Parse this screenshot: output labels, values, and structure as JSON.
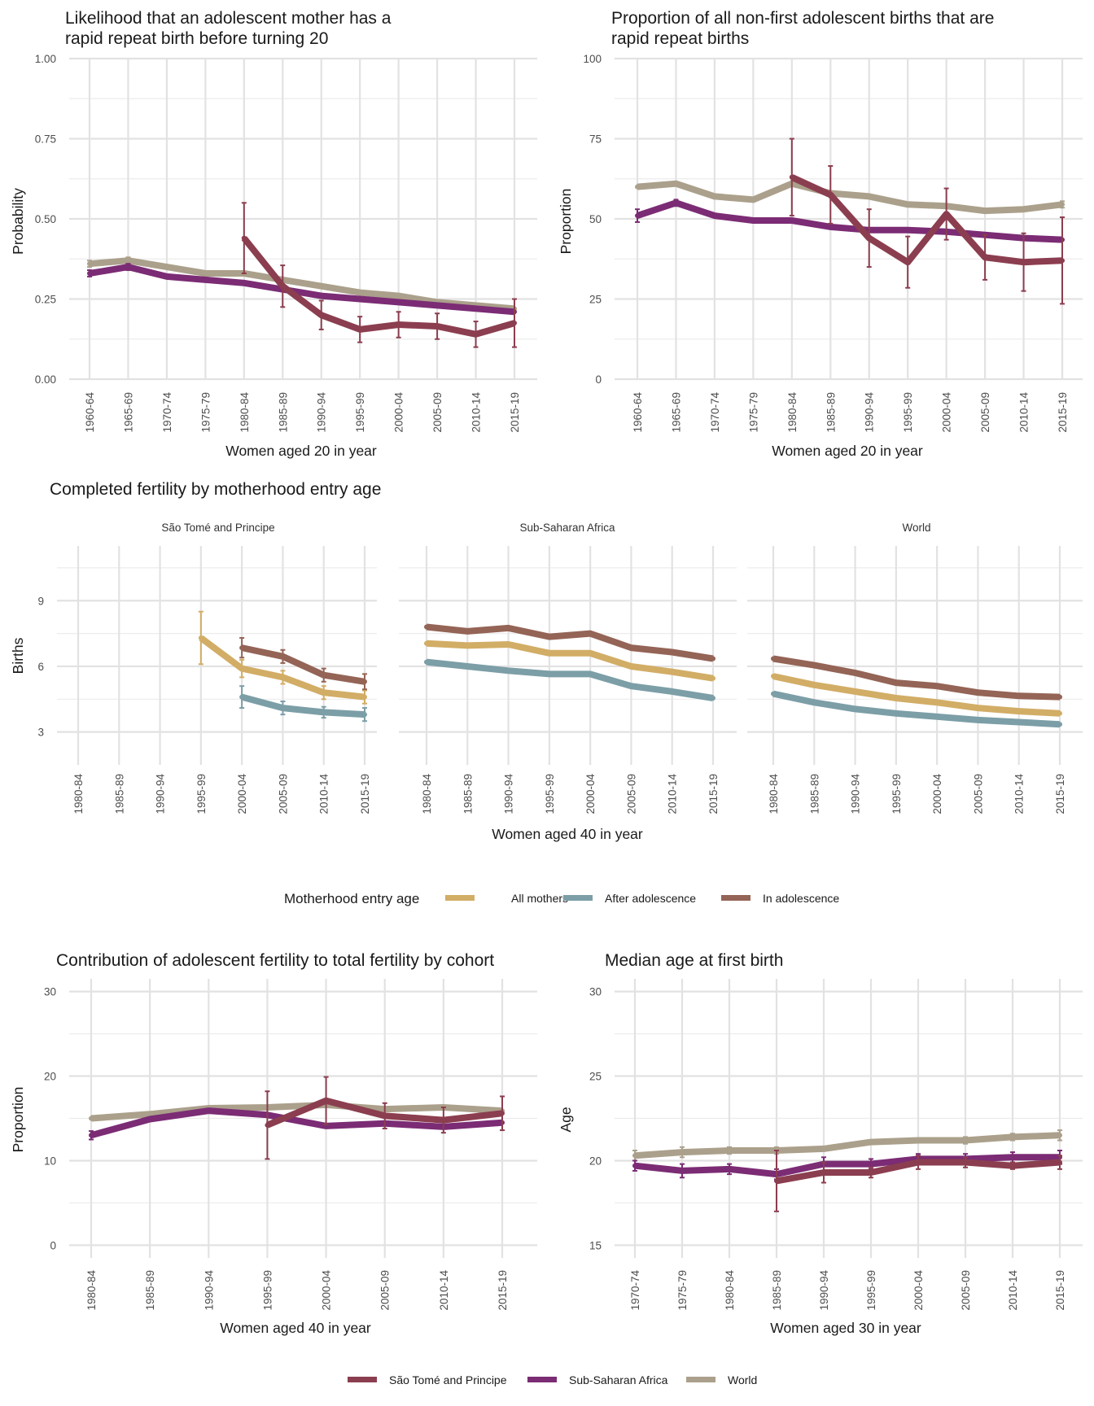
{
  "colors": {
    "stp": "#8b3e4f",
    "ssa": "#7b2c74",
    "world": "#aba08b",
    "all_mothers": "#d2ad66",
    "after_adolescence": "#7c9ea7",
    "in_adolescence": "#946456"
  },
  "legend_mother": {
    "title": "Motherhood entry age",
    "items": [
      "All mothers",
      "After adolescence",
      "In adolescence"
    ]
  },
  "legend_region": {
    "items": [
      "São Tomé and Principe",
      "Sub-Saharan Africa",
      "World"
    ]
  },
  "chart_data": [
    {
      "type": "line",
      "title": "Likelihood that an adolescent mother has a rapid repeat birth before turning 20",
      "title_lines": [
        "Likelihood that an adolescent mother has a",
        "rapid repeat birth before turning 20"
      ],
      "xlabel": "Women aged 20 in year",
      "ylabel": "Probability",
      "categories": [
        "1960-64",
        "1965-69",
        "1970-74",
        "1975-79",
        "1980-84",
        "1985-89",
        "1990-94",
        "1995-99",
        "2000-04",
        "2005-09",
        "2010-14",
        "2015-19"
      ],
      "ylim": [
        0,
        1
      ],
      "yticks": [
        "0.00",
        "0.25",
        "0.50",
        "0.75",
        "1.00"
      ],
      "series": [
        {
          "name": "World",
          "color": "#aba08b",
          "values": [
            0.36,
            0.37,
            0.35,
            0.33,
            0.33,
            0.31,
            0.29,
            0.27,
            0.26,
            0.24,
            0.23,
            0.22
          ],
          "err": [
            0.01,
            0.01,
            null,
            null,
            null,
            null,
            null,
            null,
            null,
            null,
            null,
            null
          ]
        },
        {
          "name": "Sub-Saharan Africa",
          "color": "#7b2c74",
          "values": [
            0.33,
            0.35,
            0.32,
            0.31,
            0.3,
            0.28,
            0.26,
            0.25,
            0.24,
            0.23,
            0.22,
            0.21
          ],
          "err": [
            0.01,
            0.01,
            null,
            null,
            null,
            null,
            null,
            null,
            null,
            null,
            null,
            null
          ]
        },
        {
          "name": "São Tomé and Principe",
          "color": "#8b3e4f",
          "values": [
            null,
            null,
            null,
            null,
            0.44,
            0.29,
            0.2,
            0.155,
            0.17,
            0.165,
            0.14,
            0.175
          ],
          "err": [
            null,
            null,
            null,
            null,
            0.11,
            0.065,
            0.045,
            0.04,
            0.04,
            0.04,
            0.04,
            0.075
          ]
        }
      ]
    },
    {
      "type": "line",
      "title": "Proportion of all non-first adolescent births that are rapid repeat births",
      "title_lines": [
        "Proportion of all non-first adolescent births that are",
        "rapid repeat births"
      ],
      "xlabel": "Women aged 20 in year",
      "ylabel": "Proportion",
      "categories": [
        "1960-64",
        "1965-69",
        "1970-74",
        "1975-79",
        "1980-84",
        "1985-89",
        "1990-94",
        "1995-99",
        "2000-04",
        "2005-09",
        "2010-14",
        "2015-19"
      ],
      "ylim": [
        0,
        100
      ],
      "yticks": [
        "0",
        "25",
        "50",
        "75",
        "100"
      ],
      "series": [
        {
          "name": "World",
          "color": "#aba08b",
          "values": [
            60,
            61,
            57,
            56,
            61,
            58,
            57,
            54.5,
            54,
            52.5,
            53,
            54.5
          ],
          "err": [
            null,
            null,
            null,
            null,
            null,
            null,
            null,
            null,
            null,
            null,
            null,
            1
          ]
        },
        {
          "name": "Sub-Saharan Africa",
          "color": "#7b2c74",
          "values": [
            51,
            55,
            51,
            49.5,
            49.5,
            47.5,
            46.5,
            46.5,
            46,
            45,
            44,
            43.5
          ],
          "err": [
            2,
            1,
            null,
            null,
            null,
            null,
            null,
            null,
            null,
            null,
            null,
            null
          ]
        },
        {
          "name": "São Tomé and Principe",
          "color": "#8b3e4f",
          "values": [
            null,
            null,
            null,
            null,
            63,
            57.5,
            44,
            36.5,
            51.5,
            38,
            36.5,
            37
          ],
          "err": [
            null,
            null,
            null,
            null,
            12,
            9,
            9,
            8,
            8,
            7,
            9,
            13.5
          ]
        }
      ]
    },
    {
      "type": "line",
      "title": "Completed fertility by motherhood entry age",
      "xlabel": "Women aged 40 in year",
      "ylabel": "Births",
      "categories": [
        "1980-84",
        "1985-89",
        "1990-94",
        "1995-99",
        "2000-04",
        "2005-09",
        "2010-14",
        "2015-19"
      ],
      "ylim": [
        1.5,
        11.5
      ],
      "yticks": [
        "3",
        "6",
        "9"
      ],
      "panels": [
        {
          "name": "São Tomé and Principe",
          "series": [
            {
              "name": "All mothers",
              "color": "#d2ad66",
              "values": [
                null,
                null,
                null,
                7.3,
                5.9,
                5.5,
                4.8,
                4.6
              ],
              "err": [
                null,
                null,
                null,
                1.2,
                0.4,
                0.3,
                0.3,
                0.3
              ]
            },
            {
              "name": "After adolescence",
              "color": "#7c9ea7",
              "values": [
                null,
                null,
                null,
                null,
                4.6,
                4.1,
                3.9,
                3.8
              ],
              "err": [
                null,
                null,
                null,
                null,
                0.5,
                0.3,
                0.25,
                0.3
              ]
            },
            {
              "name": "In adolescence",
              "color": "#946456",
              "values": [
                null,
                null,
                null,
                null,
                6.85,
                6.45,
                5.6,
                5.3
              ],
              "err": [
                null,
                null,
                null,
                null,
                0.45,
                0.3,
                0.3,
                0.35
              ]
            }
          ]
        },
        {
          "name": "Sub-Saharan Africa",
          "series": [
            {
              "name": "All mothers",
              "color": "#d2ad66",
              "values": [
                7.05,
                6.95,
                7.0,
                6.6,
                6.6,
                6.0,
                5.75,
                5.45
              ],
              "err": [
                null,
                null,
                null,
                null,
                null,
                null,
                null,
                null
              ]
            },
            {
              "name": "After adolescence",
              "color": "#7c9ea7",
              "values": [
                6.2,
                6.0,
                5.8,
                5.65,
                5.65,
                5.1,
                4.85,
                4.55
              ],
              "err": [
                null,
                null,
                null,
                null,
                null,
                null,
                null,
                null
              ]
            },
            {
              "name": "In adolescence",
              "color": "#946456",
              "values": [
                7.8,
                7.6,
                7.75,
                7.35,
                7.5,
                6.85,
                6.65,
                6.35
              ],
              "err": [
                null,
                null,
                null,
                null,
                null,
                null,
                null,
                null
              ]
            }
          ]
        },
        {
          "name": "World",
          "series": [
            {
              "name": "All mothers",
              "color": "#d2ad66",
              "values": [
                5.55,
                5.15,
                4.85,
                4.55,
                4.35,
                4.1,
                3.95,
                3.85
              ],
              "err": [
                null,
                null,
                null,
                null,
                null,
                null,
                null,
                null
              ]
            },
            {
              "name": "After adolescence",
              "color": "#7c9ea7",
              "values": [
                4.75,
                4.35,
                4.05,
                3.85,
                3.7,
                3.55,
                3.45,
                3.35
              ],
              "err": [
                null,
                null,
                null,
                null,
                null,
                null,
                null,
                null
              ]
            },
            {
              "name": "In adolescence",
              "color": "#946456",
              "values": [
                6.35,
                6.05,
                5.7,
                5.25,
                5.1,
                4.8,
                4.65,
                4.6
              ],
              "err": [
                null,
                null,
                null,
                null,
                null,
                null,
                null,
                null
              ]
            }
          ]
        }
      ]
    },
    {
      "type": "line",
      "title": "Contribution of adolescent fertility to total fertility by cohort",
      "xlabel": "Women aged 40 in year",
      "ylabel": "Proportion",
      "categories": [
        "1980-84",
        "1985-89",
        "1990-94",
        "1995-99",
        "2000-04",
        "2005-09",
        "2010-14",
        "2015-19"
      ],
      "ylim": [
        -1.5,
        31.5
      ],
      "yticks": [
        "0",
        "10",
        "20",
        "30"
      ],
      "series": [
        {
          "name": "World",
          "color": "#aba08b",
          "values": [
            15.0,
            15.5,
            16.2,
            16.3,
            16.6,
            16.1,
            16.3,
            15.9
          ],
          "err": [
            null,
            null,
            null,
            null,
            null,
            null,
            null,
            null
          ]
        },
        {
          "name": "Sub-Saharan Africa",
          "color": "#7b2c74",
          "values": [
            13.0,
            14.9,
            15.9,
            15.4,
            14.1,
            14.4,
            14.0,
            14.5
          ],
          "err": [
            0.5,
            null,
            null,
            null,
            null,
            null,
            null,
            null
          ]
        },
        {
          "name": "São Tomé and Principe",
          "color": "#8b3e4f",
          "values": [
            null,
            null,
            null,
            14.2,
            17.1,
            15.3,
            14.8,
            15.6
          ],
          "err": [
            null,
            null,
            null,
            4.0,
            2.8,
            1.5,
            1.5,
            2.0
          ]
        }
      ]
    },
    {
      "type": "line",
      "title": "Median age at first birth",
      "xlabel": "Women aged 30 in year",
      "ylabel": "Age",
      "categories": [
        "1970-74",
        "1975-79",
        "1980-84",
        "1985-89",
        "1990-94",
        "1995-99",
        "2000-04",
        "2005-09",
        "2010-14",
        "2015-19"
      ],
      "ylim": [
        14.25,
        30.75
      ],
      "yticks": [
        "15",
        "20",
        "25",
        "30"
      ],
      "series": [
        {
          "name": "World",
          "color": "#aba08b",
          "values": [
            20.3,
            20.5,
            20.6,
            20.6,
            20.7,
            21.1,
            21.2,
            21.2,
            21.4,
            21.5
          ],
          "err": [
            0.3,
            0.3,
            0.2,
            0.2,
            null,
            null,
            null,
            0.2,
            0.2,
            0.3
          ]
        },
        {
          "name": "Sub-Saharan Africa",
          "color": "#7b2c74",
          "values": [
            19.7,
            19.4,
            19.5,
            19.2,
            19.8,
            19.8,
            20.1,
            20.1,
            20.2,
            20.2
          ],
          "err": [
            0.3,
            0.4,
            0.3,
            0.3,
            0.4,
            0.3,
            0.3,
            0.3,
            0.3,
            0.4
          ]
        },
        {
          "name": "São Tomé and Principe",
          "color": "#8b3e4f",
          "values": [
            null,
            null,
            null,
            18.8,
            19.3,
            19.3,
            19.9,
            19.9,
            19.7,
            19.9
          ],
          "err": [
            null,
            null,
            null,
            1.8,
            0.6,
            0.3,
            0.4,
            0.3,
            0.2,
            0.4
          ]
        }
      ]
    }
  ]
}
